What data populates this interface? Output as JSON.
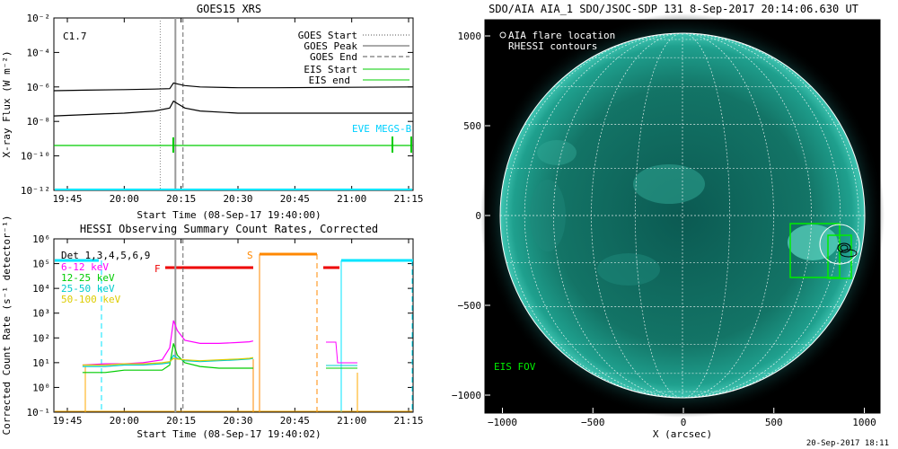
{
  "chart_data": [
    {
      "id": "goes",
      "type": "line",
      "title": "GOES15 XRS",
      "xlabel": "Start Time (08-Sep-17 19:40:00)",
      "ylabel": "X-ray Flux (W m⁻²)",
      "flare_class": "C1.7",
      "x_ticks": [
        "19:45",
        "20:00",
        "20:15",
        "20:30",
        "20:45",
        "21:00",
        "21:15"
      ],
      "y_scale": "log",
      "ylim": [
        1e-12,
        0.01
      ],
      "y_ticks": [
        "10⁻¹²",
        "10⁻¹⁰",
        "10⁻⁸",
        "10⁻⁶",
        "10⁻⁴",
        "10⁻²"
      ],
      "legend": [
        "GOES Start",
        "GOES Peak",
        "GOES End",
        "EIS Start",
        "EIS end"
      ],
      "annotation": "EVE MEGS-B",
      "series": [
        {
          "name": "",
          "color": "#000000",
          "t": [
            0,
            10,
            20,
            28,
            32,
            33,
            34,
            36,
            40,
            50,
            60,
            80,
            96
          ],
          "values": [
            6e-07,
            6.5e-07,
            7e-07,
            7.5e-07,
            8e-07,
            1.7e-06,
            1.5e-06,
            1.2e-06,
            1e-06,
            9e-07,
            9e-07,
            9.5e-07,
            1e-06
          ]
        },
        {
          "name": "",
          "color": "#000000",
          "t": [
            0,
            10,
            20,
            28,
            32,
            33,
            34,
            36,
            40,
            50,
            60,
            80,
            96
          ],
          "values": [
            2e-08,
            2.5e-08,
            3e-08,
            4e-08,
            6e-08,
            1.5e-07,
            1.1e-07,
            6e-08,
            4e-08,
            3e-08,
            3e-08,
            3e-08,
            3e-08
          ]
        },
        {
          "name": "",
          "color": "#00cc00",
          "t": [
            0,
            96
          ],
          "values": [
            4e-10,
            4e-10
          ]
        }
      ],
      "markers": {
        "goes_start": 29.5,
        "goes_peak": 33.5,
        "goes_end": 35.5,
        "eis_start": 30.5,
        "eis_end": 91
      }
    },
    {
      "id": "hessi",
      "type": "line",
      "title": "HESSI Observing Summary Count Rates, Corrected",
      "xlabel": "Start Time (08-Sep-17 19:40:02)",
      "ylabel": "Corrected Count Rate (s⁻¹ detector⁻¹)",
      "x_ticks": [
        "19:45",
        "20:00",
        "20:15",
        "20:30",
        "20:45",
        "21:00",
        "21:15"
      ],
      "y_scale": "log",
      "ylim": [
        0.1,
        1000000.0
      ],
      "y_ticks": [
        "10⁻¹",
        "10⁰",
        "10¹",
        "10²",
        "10³",
        "10⁴",
        "10⁵",
        "10⁶"
      ],
      "legend_title": "Det 1,3,4,5,6,9",
      "flags": [
        "F",
        "S"
      ],
      "series": [
        {
          "name": "6-12 keV",
          "color": "#ff00ff",
          "t": [
            9,
            15,
            20,
            25,
            30,
            32,
            33,
            34,
            36,
            40,
            45,
            50,
            53,
            54
          ],
          "values": [
            8,
            9,
            9,
            10,
            13,
            40,
            500,
            200,
            80,
            60,
            60,
            65,
            70,
            75
          ]
        },
        {
          "name": "12-25 keV",
          "color": "#00cc00",
          "t": [
            9,
            15,
            20,
            25,
            30,
            32,
            33,
            34,
            36,
            40,
            45,
            50,
            53,
            54
          ],
          "values": [
            4,
            4,
            5,
            5,
            5,
            8,
            60,
            20,
            10,
            7,
            6,
            6,
            6,
            6
          ]
        },
        {
          "name": "25-50 keV",
          "color": "#00cccc",
          "t": [
            9,
            15,
            20,
            25,
            30,
            32,
            33,
            34,
            36,
            40,
            45,
            50,
            53,
            54
          ],
          "values": [
            7,
            7,
            8,
            8,
            9,
            10,
            20,
            15,
            12,
            11,
            12,
            13,
            14,
            15
          ]
        },
        {
          "name": "50-100 keV",
          "color": "#ddcc00",
          "t": [
            9,
            15,
            20,
            25,
            30,
            32,
            33,
            34,
            36,
            40,
            45,
            50,
            53,
            54
          ],
          "values": [
            8,
            8,
            9,
            9,
            10,
            11,
            15,
            14,
            13,
            12,
            13,
            14,
            15,
            16
          ]
        }
      ],
      "markers": {
        "goes_peak": 33.5,
        "goes_end": 35.5
      }
    },
    {
      "id": "aia",
      "type": "heatmap",
      "title": "SDO/AIA AIA_1 SDO/JSOC-SDP 131   8-Sep-2017 20:14:06.630 UT",
      "xlabel": "X (arcsec)",
      "x_ticks": [
        "−1000",
        "−500",
        "0",
        "500",
        "1000"
      ],
      "y_ticks": [
        "1000",
        "500",
        "0",
        "−500",
        "−1000"
      ],
      "legend": [
        "AIA flare location",
        "RHESSI contours"
      ],
      "annotation": "EIS FOV",
      "footer": "20-Sep-2017 18:11"
    }
  ]
}
